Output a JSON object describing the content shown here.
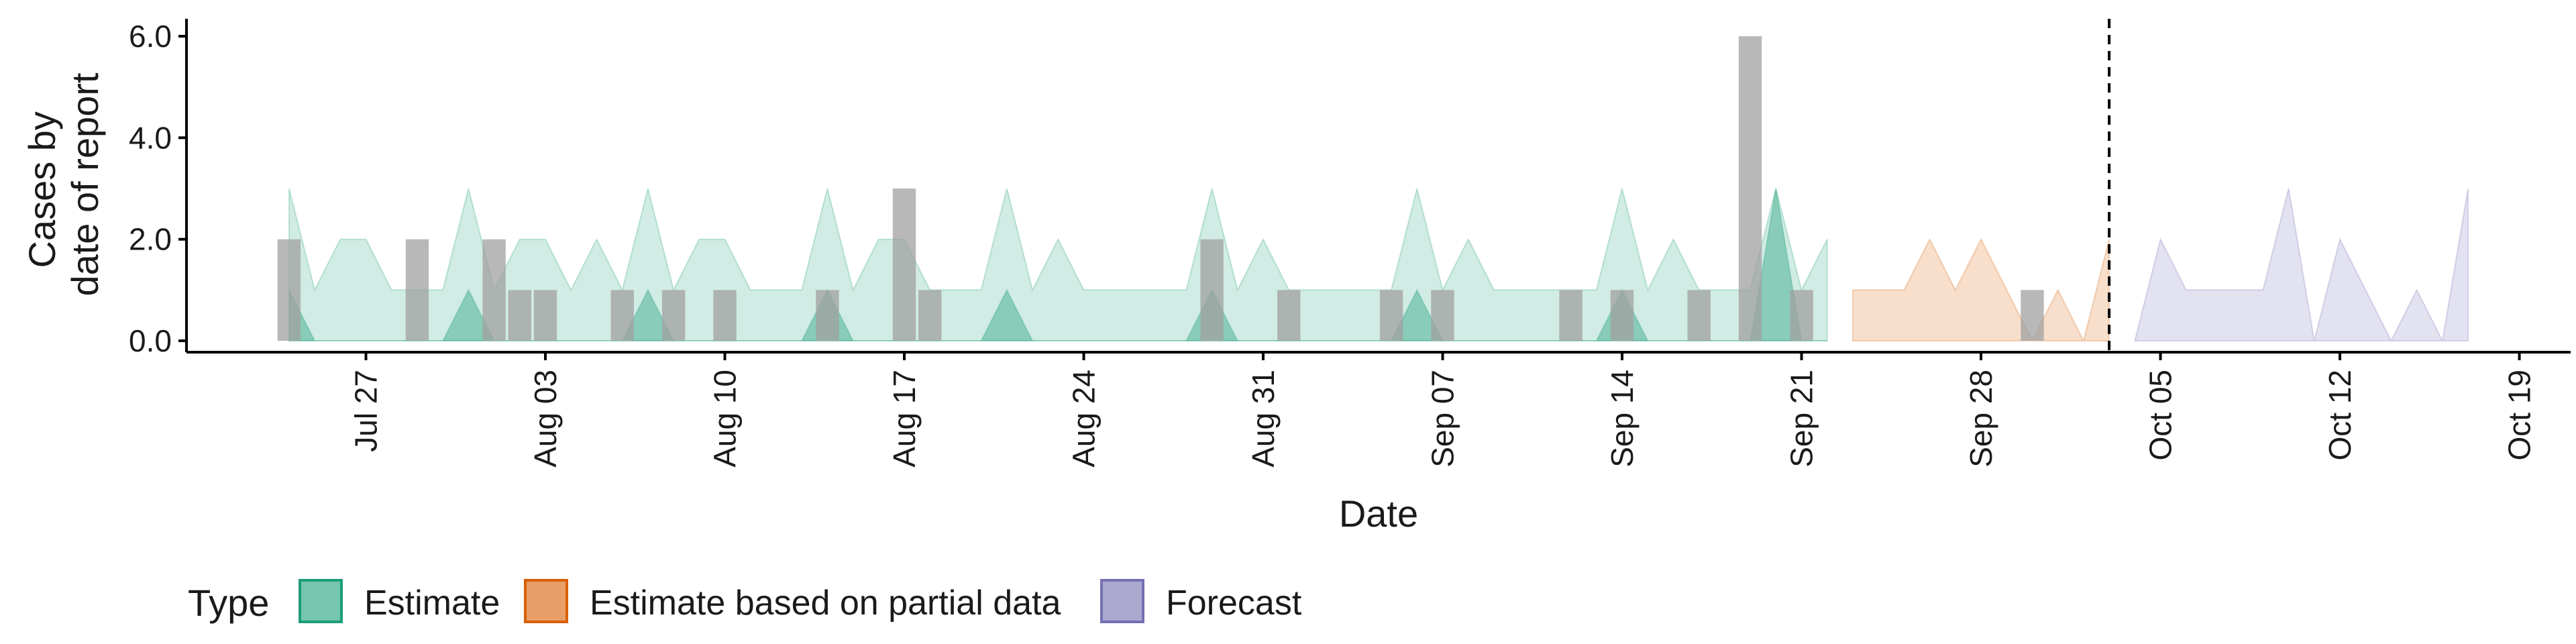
{
  "chart_data": {
    "type": "area",
    "xlabel": "Date",
    "ylabel": [
      "Cases by",
      "date of report"
    ],
    "ylim": [
      0,
      6.3
    ],
    "xlim": [
      "2020-07-20",
      "2020-10-21"
    ],
    "y_ticks": [
      0,
      2,
      4,
      6
    ],
    "y_tick_labels": [
      "0.0",
      "2.0",
      "4.0",
      "6.0"
    ],
    "x_ticks": [
      "2020-07-27",
      "2020-08-03",
      "2020-08-10",
      "2020-08-17",
      "2020-08-24",
      "2020-08-31",
      "2020-09-07",
      "2020-09-14",
      "2020-09-21",
      "2020-09-28",
      "2020-10-05",
      "2020-10-12",
      "2020-10-19"
    ],
    "x_tick_labels": [
      "Jul 27",
      "Aug 03",
      "Aug 10",
      "Aug 17",
      "Aug 24",
      "Aug 31",
      "Sep 07",
      "Sep 14",
      "Sep 21",
      "Sep 28",
      "Oct 05",
      "Oct 12",
      "Oct 19"
    ],
    "vline_date": "2020-10-03",
    "legend": {
      "title": "Type",
      "position": "bottom",
      "items": [
        {
          "label": "Estimate",
          "color": "#1b9e77"
        },
        {
          "label": "Estimate based on partial data",
          "color": "#d95f02"
        },
        {
          "label": "Forecast",
          "color": "#7570b3"
        }
      ]
    },
    "bars": {
      "color": "#a0a0a0",
      "x": [
        "2020-07-24",
        "2020-07-29",
        "2020-08-01",
        "2020-08-02",
        "2020-08-03",
        "2020-08-06",
        "2020-08-08",
        "2020-08-10",
        "2020-08-14",
        "2020-08-17",
        "2020-08-18",
        "2020-08-29",
        "2020-09-01",
        "2020-09-05",
        "2020-09-07",
        "2020-09-12",
        "2020-09-14",
        "2020-09-17",
        "2020-09-19",
        "2020-09-21",
        "2020-09-30"
      ],
      "values": [
        2,
        2,
        2,
        1,
        1,
        1,
        1,
        1,
        1,
        3,
        1,
        2,
        1,
        1,
        1,
        1,
        1,
        1,
        6,
        1,
        1
      ]
    },
    "series": [
      {
        "name": "Estimate",
        "color": "#1b9e77",
        "bands": [
          {
            "x": [
              "2020-07-24",
              "2020-07-25",
              "2020-07-26",
              "2020-07-27",
              "2020-07-28",
              "2020-07-29",
              "2020-07-30",
              "2020-07-31",
              "2020-08-01",
              "2020-08-02",
              "2020-08-03",
              "2020-08-04",
              "2020-08-05",
              "2020-08-06",
              "2020-08-07",
              "2020-08-08",
              "2020-08-09",
              "2020-08-10",
              "2020-08-11",
              "2020-08-12",
              "2020-08-13",
              "2020-08-14",
              "2020-08-15",
              "2020-08-16",
              "2020-08-17",
              "2020-08-18",
              "2020-08-19",
              "2020-08-20",
              "2020-08-21",
              "2020-08-22",
              "2020-08-23",
              "2020-08-24",
              "2020-08-25",
              "2020-08-26",
              "2020-08-27",
              "2020-08-28",
              "2020-08-29",
              "2020-08-30",
              "2020-08-31",
              "2020-09-01",
              "2020-09-02",
              "2020-09-03",
              "2020-09-04",
              "2020-09-05",
              "2020-09-06",
              "2020-09-07",
              "2020-09-08",
              "2020-09-09",
              "2020-09-10",
              "2020-09-11",
              "2020-09-12",
              "2020-09-13",
              "2020-09-14",
              "2020-09-15",
              "2020-09-16",
              "2020-09-17",
              "2020-09-18",
              "2020-09-19",
              "2020-09-20",
              "2020-09-21",
              "2020-09-22"
            ],
            "lower": [
              0,
              0,
              0,
              0,
              0,
              0,
              0,
              0,
              0,
              0,
              0,
              0,
              0,
              0,
              0,
              0,
              0,
              0,
              0,
              0,
              0,
              0,
              0,
              0,
              0,
              0,
              0,
              0,
              0,
              0,
              0,
              0,
              0,
              0,
              0,
              0,
              0,
              0,
              0,
              0,
              0,
              0,
              0,
              0,
              0,
              0,
              0,
              0,
              0,
              0,
              0,
              0,
              0,
              0,
              0,
              0,
              0,
              0,
              0,
              0,
              0
            ],
            "upper": [
              3,
              1,
              2,
              2,
              1,
              1,
              1,
              3,
              1,
              2,
              2,
              1,
              2,
              1,
              3,
              1,
              2,
              2,
              1,
              1,
              1,
              3,
              1,
              2,
              2,
              1,
              1,
              1,
              3,
              1,
              2,
              1,
              1,
              1,
              1,
              1,
              3,
              1,
              2,
              1,
              1,
              1,
              1,
              1,
              3,
              1,
              2,
              1,
              1,
              1,
              1,
              1,
              3,
              1,
              2,
              1,
              1,
              1,
              3,
              1,
              2
            ]
          },
          {
            "x": [
              "2020-07-24",
              "2020-07-25",
              "2020-07-26",
              "2020-07-27",
              "2020-07-28",
              "2020-07-29",
              "2020-07-30",
              "2020-07-31",
              "2020-08-01",
              "2020-08-02",
              "2020-08-03",
              "2020-08-04",
              "2020-08-05",
              "2020-08-06",
              "2020-08-07",
              "2020-08-08",
              "2020-08-09",
              "2020-08-10",
              "2020-08-11",
              "2020-08-12",
              "2020-08-13",
              "2020-08-14",
              "2020-08-15",
              "2020-08-16",
              "2020-08-17",
              "2020-08-18",
              "2020-08-19",
              "2020-08-20",
              "2020-08-21",
              "2020-08-22",
              "2020-08-23",
              "2020-08-24",
              "2020-08-25",
              "2020-08-26",
              "2020-08-27",
              "2020-08-28",
              "2020-08-29",
              "2020-08-30",
              "2020-08-31",
              "2020-09-01",
              "2020-09-02",
              "2020-09-03",
              "2020-09-04",
              "2020-09-05",
              "2020-09-06",
              "2020-09-07",
              "2020-09-08",
              "2020-09-09",
              "2020-09-10",
              "2020-09-11",
              "2020-09-12",
              "2020-09-13",
              "2020-09-14",
              "2020-09-15",
              "2020-09-16",
              "2020-09-17",
              "2020-09-18",
              "2020-09-19",
              "2020-09-20",
              "2020-09-21",
              "2020-09-22"
            ],
            "lower": [
              0,
              0,
              0,
              0,
              0,
              0,
              0,
              0,
              0,
              0,
              0,
              0,
              0,
              0,
              0,
              0,
              0,
              0,
              0,
              0,
              0,
              0,
              0,
              0,
              0,
              0,
              0,
              0,
              0,
              0,
              0,
              0,
              0,
              0,
              0,
              0,
              0,
              0,
              0,
              0,
              0,
              0,
              0,
              0,
              0,
              0,
              0,
              0,
              0,
              0,
              0,
              0,
              0,
              0,
              0,
              0,
              0,
              0,
              0,
              0,
              0
            ],
            "upper": [
              1,
              0,
              0,
              0,
              0,
              0,
              0,
              1,
              0,
              0,
              0,
              0,
              0,
              0,
              1,
              0,
              0,
              0,
              0,
              0,
              0,
              1,
              0,
              0,
              0,
              0,
              0,
              0,
              1,
              0,
              0,
              0,
              0,
              0,
              0,
              0,
              1,
              0,
              0,
              0,
              0,
              0,
              0,
              0,
              1,
              0,
              0,
              0,
              0,
              0,
              0,
              0,
              1,
              0,
              0,
              0,
              0,
              0,
              3,
              0,
              0
            ]
          }
        ]
      },
      {
        "name": "Estimate based on partial data",
        "color": "#d95f02",
        "bands": [
          {
            "x": [
              "2020-09-23",
              "2020-09-24",
              "2020-09-25",
              "2020-09-26",
              "2020-09-27",
              "2020-09-28",
              "2020-09-29",
              "2020-09-30",
              "2020-10-01",
              "2020-10-02",
              "2020-10-03"
            ],
            "lower": [
              0,
              0,
              0,
              0,
              0,
              0,
              0,
              0,
              0,
              0,
              0
            ],
            "upper": [
              1,
              1,
              1,
              2,
              1,
              2,
              1,
              0,
              1,
              0,
              2
            ]
          }
        ]
      },
      {
        "name": "Forecast",
        "color": "#7570b3",
        "bands": [
          {
            "x": [
              "2020-10-04",
              "2020-10-05",
              "2020-10-06",
              "2020-10-07",
              "2020-10-08",
              "2020-10-09",
              "2020-10-10",
              "2020-10-11",
              "2020-10-12",
              "2020-10-13",
              "2020-10-14",
              "2020-10-15",
              "2020-10-16",
              "2020-10-17"
            ],
            "lower": [
              0,
              0,
              0,
              0,
              0,
              0,
              0,
              0,
              0,
              0,
              0,
              0,
              0,
              0
            ],
            "upper": [
              0,
              2,
              1,
              1,
              1,
              1,
              3,
              0,
              2,
              1,
              0,
              1,
              0,
              3
            ]
          }
        ]
      }
    ]
  }
}
